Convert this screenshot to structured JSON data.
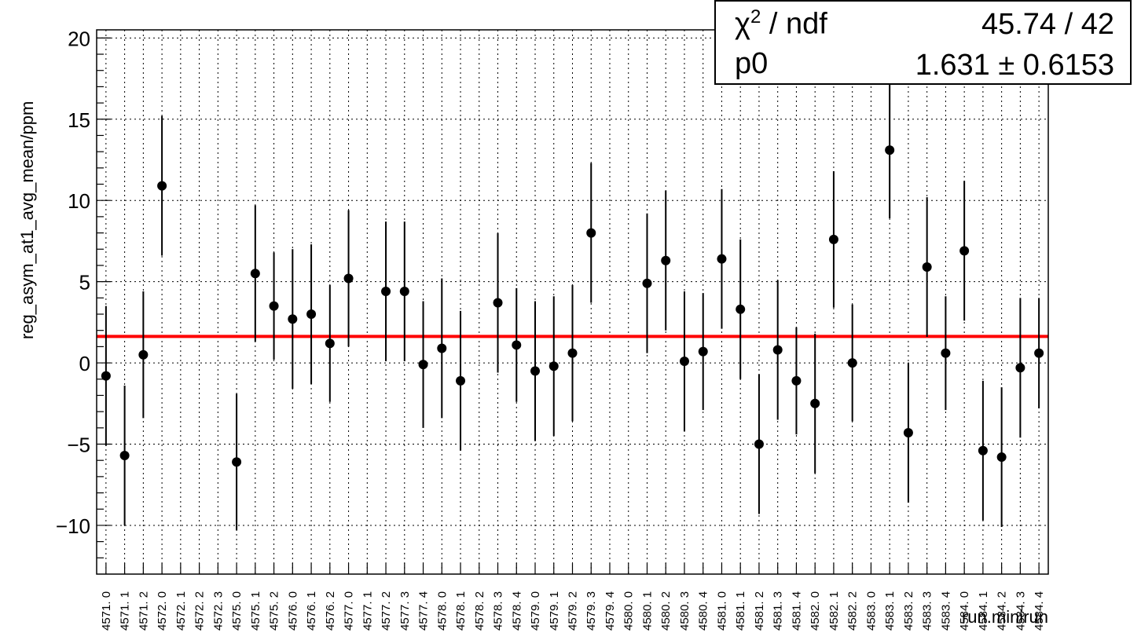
{
  "chart_data": {
    "type": "scatter",
    "ylabel": "reg_asym_at1_avg_mean/ppm",
    "xlabel": "run.minirun",
    "ylim": [
      -13,
      20.5
    ],
    "yticks": [
      -10,
      -5,
      0,
      5,
      10,
      15,
      20
    ],
    "ytick_labels": [
      "−10",
      "−5",
      "0",
      "5",
      "10",
      "15",
      "20"
    ],
    "grid": true,
    "categories": [
      "4571. 0",
      "4571. 1",
      "4571. 2",
      "4572. 0",
      "4572. 1",
      "4572. 2",
      "4572. 3",
      "4575. 0",
      "4575. 1",
      "4575. 2",
      "4576. 0",
      "4576. 1",
      "4576. 2",
      "4577. 0",
      "4577. 1",
      "4577. 2",
      "4577. 3",
      "4577. 4",
      "4578. 0",
      "4578. 1",
      "4578. 2",
      "4578. 3",
      "4578. 4",
      "4579. 0",
      "4579. 1",
      "4579. 2",
      "4579. 3",
      "4579. 4",
      "4580. 0",
      "4580. 1",
      "4580. 2",
      "4580. 3",
      "4580. 4",
      "4581. 0",
      "4581. 1",
      "4581. 2",
      "4581. 3",
      "4581. 4",
      "4582. 0",
      "4582. 1",
      "4582. 2",
      "4583. 0",
      "4583. 1",
      "4583. 2",
      "4583. 3",
      "4583. 4",
      "4584. 0",
      "4584. 1",
      "4584. 2",
      "4584. 3",
      "4584. 4"
    ],
    "series": [
      {
        "color": "#000000",
        "values": [
          -0.8,
          -5.7,
          0.5,
          10.9,
          null,
          null,
          null,
          -6.1,
          5.5,
          3.5,
          2.7,
          3.0,
          1.2,
          5.2,
          null,
          4.4,
          4.4,
          -0.1,
          0.9,
          -1.1,
          null,
          3.7,
          1.1,
          -0.5,
          -0.2,
          0.6,
          8.0,
          null,
          null,
          4.9,
          6.3,
          0.1,
          0.7,
          6.4,
          3.3,
          -5.0,
          0.8,
          -1.1,
          -2.5,
          7.6,
          0.0,
          null,
          13.1,
          -4.3,
          5.9,
          0.6,
          6.9,
          -5.4,
          -5.8,
          -0.3,
          0.6
        ],
        "errors": [
          4.3,
          4.3,
          3.9,
          4.3,
          null,
          null,
          null,
          4.2,
          4.2,
          3.3,
          4.3,
          4.3,
          3.6,
          4.2,
          null,
          4.3,
          4.3,
          3.9,
          4.3,
          4.3,
          null,
          4.3,
          3.5,
          4.3,
          4.3,
          4.2,
          4.3,
          null,
          null,
          4.3,
          4.3,
          4.3,
          3.6,
          4.3,
          4.3,
          4.3,
          4.3,
          3.3,
          4.3,
          4.2,
          3.6,
          null,
          4.2,
          4.3,
          4.3,
          3.5,
          4.3,
          4.3,
          4.3,
          4.3,
          3.4
        ]
      }
    ],
    "fit": {
      "value": 1.631,
      "color": "#ff0000"
    }
  },
  "stats": {
    "chi_label": "/ ndf",
    "chi_value": "45.74 / 42",
    "p0_label": "p0",
    "p0_value": "1.631 ± 0.6153"
  }
}
